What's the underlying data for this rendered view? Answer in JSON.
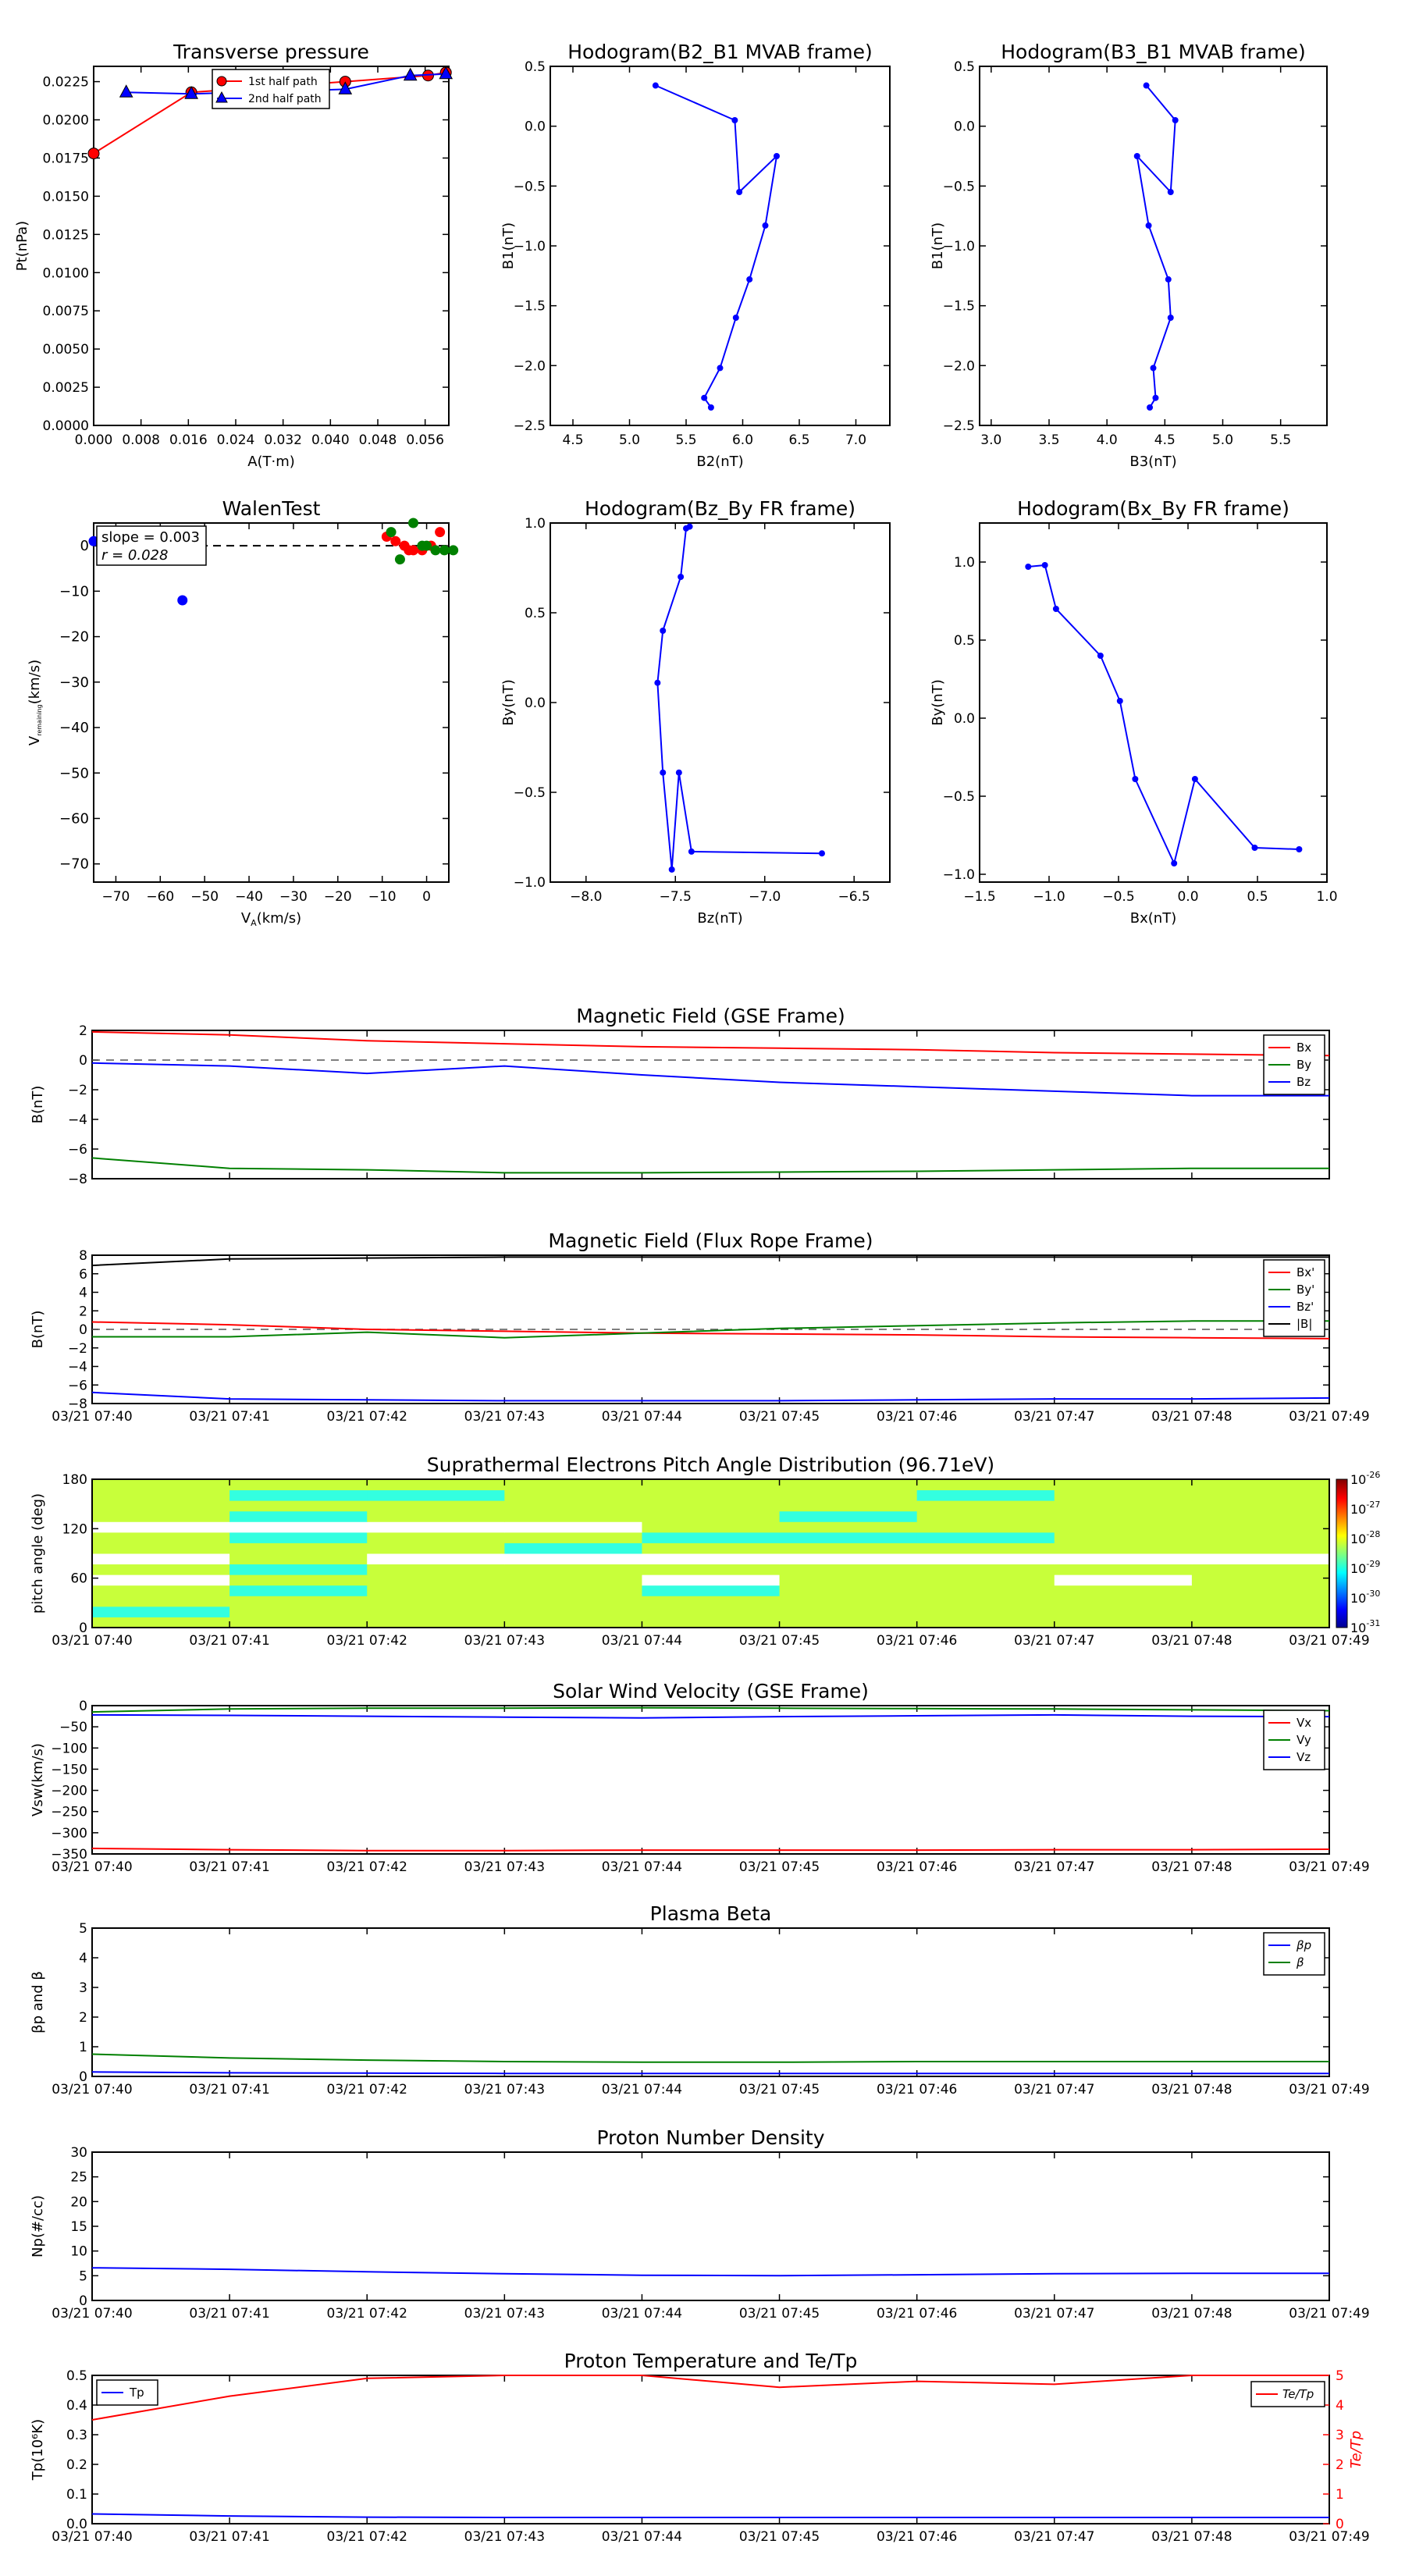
{
  "colors": {
    "red": "#ff0000",
    "green": "#008000",
    "blue": "#0000ff",
    "black": "#000000",
    "dash": "#555555"
  },
  "time_ticks": [
    "03/21 07:40",
    "03/21 07:41",
    "03/21 07:42",
    "03/21 07:43",
    "03/21 07:44",
    "03/21 07:45",
    "03/21 07:46",
    "03/21 07:47",
    "03/21 07:48",
    "03/21 07:49"
  ],
  "chart_data": [
    {
      "id": "tp",
      "type": "line",
      "title": "Transverse pressure",
      "xlabel": "A(T·m)",
      "ylabel": "Pt(nPa)",
      "xlim": [
        0,
        0.06
      ],
      "ylim": [
        0,
        0.0235
      ],
      "xticks": [
        0,
        0.008,
        0.016,
        0.024,
        0.032,
        0.04,
        0.048,
        0.056
      ],
      "xtick_labels": [
        "0.000",
        "0.008",
        "0.016",
        "0.024",
        "0.032",
        "0.040",
        "0.048",
        "0.056"
      ],
      "yticks": [
        0,
        0.0025,
        0.005,
        0.0075,
        0.01,
        0.0125,
        0.015,
        0.0175,
        0.02,
        0.0225
      ],
      "ytick_labels": [
        "0.0000",
        "0.0025",
        "0.0050",
        "0.0075",
        "0.0100",
        "0.0125",
        "0.0150",
        "0.0175",
        "0.0200",
        "0.0225"
      ],
      "legend": "top-right",
      "series": [
        {
          "name": "1st half path",
          "color": "#ff0000",
          "marker": "circle",
          "x": [
            0.0,
            0.0165,
            0.0425,
            0.0565,
            0.0595
          ],
          "y": [
            0.0178,
            0.0218,
            0.0225,
            0.0229,
            0.0231
          ]
        },
        {
          "name": "2nd half path",
          "color": "#0000ff",
          "marker": "triangle",
          "x": [
            0.0055,
            0.0165,
            0.0425,
            0.0535,
            0.0595
          ],
          "y": [
            0.0218,
            0.0217,
            0.022,
            0.0229,
            0.023
          ]
        }
      ]
    },
    {
      "id": "h1",
      "type": "line",
      "title": "Hodogram(B2_B1 MVAB frame)",
      "xlabel": "B2(nT)",
      "ylabel": "B1(nT)",
      "xlim": [
        4.3,
        7.3
      ],
      "ylim": [
        -2.5,
        0.5
      ],
      "xticks": [
        4.5,
        5,
        5.5,
        6,
        6.5,
        7
      ],
      "xtick_labels": [
        "4.5",
        "5.0",
        "5.5",
        "6.0",
        "6.5",
        "7.0"
      ],
      "yticks": [
        -2.5,
        -2,
        -1.5,
        -1,
        -0.5,
        0,
        0.5
      ],
      "ytick_labels": [
        "−2.5",
        "−2.0",
        "−1.5",
        "−1.0",
        "−0.5",
        "0.0",
        "0.5"
      ],
      "series": [
        {
          "color": "#0000ff",
          "x": [
            5.23,
            5.93,
            5.97,
            6.3,
            6.2,
            6.06,
            5.94,
            5.8,
            5.66,
            5.72
          ],
          "y": [
            0.34,
            0.05,
            -0.55,
            -0.25,
            -0.83,
            -1.28,
            -1.6,
            -2.02,
            -2.27,
            -2.35
          ]
        }
      ]
    },
    {
      "id": "h2",
      "type": "line",
      "title": "Hodogram(B3_B1 MVAB frame)",
      "xlabel": "B3(nT)",
      "ylabel": "B1(nT)",
      "xlim": [
        2.9,
        5.9
      ],
      "ylim": [
        -2.5,
        0.5
      ],
      "xticks": [
        3,
        3.5,
        4,
        4.5,
        5,
        5.5
      ],
      "xtick_labels": [
        "3.0",
        "3.5",
        "4.0",
        "4.5",
        "5.0",
        "5.5"
      ],
      "yticks": [
        -2.5,
        -2,
        -1.5,
        -1,
        -0.5,
        0,
        0.5
      ],
      "ytick_labels": [
        "−2.5",
        "−2.0",
        "−1.5",
        "−1.0",
        "−0.5",
        "0.0",
        "0.5"
      ],
      "series": [
        {
          "color": "#0000ff",
          "x": [
            4.34,
            4.59,
            4.55,
            4.26,
            4.36,
            4.53,
            4.55,
            4.4,
            4.42,
            4.37
          ],
          "y": [
            0.34,
            0.05,
            -0.55,
            -0.25,
            -0.83,
            -1.28,
            -1.6,
            -2.02,
            -2.27,
            -2.35
          ]
        }
      ]
    },
    {
      "id": "walen",
      "type": "scatter",
      "title": "WalenTest",
      "xlabel": "V",
      "xlabel_sub": "A",
      "xlabel_tail": "(km/s)",
      "ylabel": "V",
      "ylabel_sub": "remaining",
      "ylabel_tail": "(km/s)",
      "xlim": [
        -75,
        5
      ],
      "ylim": [
        -74,
        5
      ],
      "xticks": [
        -70,
        -60,
        -50,
        -40,
        -30,
        -20,
        -10,
        0
      ],
      "xtick_labels": [
        "−70",
        "−60",
        "−50",
        "−40",
        "−30",
        "−20",
        "−10",
        "0"
      ],
      "yticks": [
        -70,
        -60,
        -50,
        -40,
        -30,
        -20,
        -10,
        0
      ],
      "ytick_labels": [
        "−70",
        "−60",
        "−50",
        "−40",
        "−30",
        "−20",
        "−10",
        "0"
      ],
      "annotation_slope": "slope = 0.003",
      "annotation_r": "r = 0.028",
      "series": [
        {
          "color": "#0000ff",
          "x": [
            -75,
            -67,
            -64,
            -55
          ],
          "y": [
            1,
            -1,
            -3,
            -12
          ]
        },
        {
          "color": "#ff0000",
          "x": [
            -9,
            -7,
            -5,
            -4,
            -3,
            -1,
            1,
            3
          ],
          "y": [
            2,
            1,
            0,
            -1,
            -1,
            -1,
            0,
            3
          ]
        },
        {
          "color": "#008000",
          "x": [
            -8,
            -6,
            -3,
            -1,
            0,
            2,
            4,
            6
          ],
          "y": [
            3,
            -3,
            5,
            0,
            0,
            -1,
            -1,
            -1
          ]
        }
      ]
    },
    {
      "id": "fr1",
      "type": "line",
      "title": "Hodogram(Bz_By FR frame)",
      "xlabel": "Bz(nT)",
      "ylabel": "By(nT)",
      "xlim": [
        -8.2,
        -6.3
      ],
      "ylim": [
        -1.0,
        1.0
      ],
      "xticks": [
        -8,
        -7.5,
        -7,
        -6.5
      ],
      "xtick_labels": [
        "−8.0",
        "−7.5",
        "−7.0",
        "−6.5"
      ],
      "yticks": [
        -1,
        -0.5,
        0,
        0.5,
        1
      ],
      "ytick_labels": [
        "−1.0",
        "−0.5",
        "0.0",
        "0.5",
        "1.0"
      ],
      "series": [
        {
          "color": "#0000ff",
          "x": [
            -7.42,
            -7.44,
            -7.47,
            -7.57,
            -7.6,
            -7.57,
            -7.52,
            -7.48,
            -7.41,
            -6.68
          ],
          "y": [
            0.98,
            0.97,
            0.7,
            0.4,
            0.11,
            -0.39,
            -0.93,
            -0.39,
            -0.83,
            -0.84
          ]
        }
      ]
    },
    {
      "id": "fr2",
      "type": "line",
      "title": "Hodogram(Bx_By FR frame)",
      "xlabel": "Bx(nT)",
      "ylabel": "By(nT)",
      "xlim": [
        -1.5,
        1.0
      ],
      "ylim": [
        -1.05,
        1.25
      ],
      "xticks": [
        -1.5,
        -1,
        -0.5,
        0,
        0.5,
        1
      ],
      "xtick_labels": [
        "−1.5",
        "−1.0",
        "−0.5",
        "0.0",
        "0.5",
        "1.0"
      ],
      "yticks": [
        -1,
        -0.5,
        0,
        0.5,
        1
      ],
      "ytick_labels": [
        "−1.0",
        "−0.5",
        "0.0",
        "0.5",
        "1.0"
      ],
      "series": [
        {
          "color": "#0000ff",
          "x": [
            -1.15,
            -1.03,
            -0.95,
            -0.63,
            -0.49,
            -0.38,
            -0.1,
            0.05,
            0.48,
            0.8
          ],
          "y": [
            0.97,
            0.98,
            0.7,
            0.4,
            0.11,
            -0.39,
            -0.93,
            -0.39,
            -0.83,
            -0.84
          ]
        }
      ]
    },
    {
      "id": "bgse",
      "type": "line",
      "title": "Magnetic Field (GSE Frame)",
      "ylabel": "B(nT)",
      "ylim": [
        -8,
        2
      ],
      "yticks": [
        -8,
        -6,
        -4,
        -2,
        0,
        2
      ],
      "ytick_labels": [
        "−8",
        "−6",
        "−4",
        "−2",
        "0",
        "2"
      ],
      "time_labels": false,
      "zero_line": true,
      "series": [
        {
          "name": "Bx",
          "color": "#ff0000",
          "y": [
            1.9,
            1.7,
            1.3,
            1.1,
            0.9,
            0.8,
            0.7,
            0.5,
            0.4,
            0.3
          ]
        },
        {
          "name": "By",
          "color": "#008000",
          "y": [
            -6.6,
            -7.3,
            -7.4,
            -7.6,
            -7.6,
            -7.55,
            -7.5,
            -7.4,
            -7.3,
            -7.3
          ]
        },
        {
          "name": "Bz",
          "color": "#0000ff",
          "y": [
            -0.2,
            -0.4,
            -0.9,
            -0.4,
            -1.0,
            -1.5,
            -1.8,
            -2.1,
            -2.4,
            -2.4
          ]
        }
      ]
    },
    {
      "id": "bfr",
      "type": "line",
      "title": "Magnetic Field (Flux Rope Frame)",
      "ylabel": "B(nT)",
      "ylim": [
        -8,
        8
      ],
      "yticks": [
        -8,
        -6,
        -4,
        -2,
        0,
        2,
        4,
        6,
        8
      ],
      "ytick_labels": [
        "−8",
        "−6",
        "−4",
        "−2",
        "0",
        "2",
        "4",
        "6",
        "8"
      ],
      "time_labels": true,
      "zero_line": true,
      "series": [
        {
          "name": "Bx'",
          "color": "#ff0000",
          "y": [
            0.8,
            0.5,
            0.0,
            -0.2,
            -0.4,
            -0.5,
            -0.6,
            -0.8,
            -0.9,
            -1.0
          ]
        },
        {
          "name": "By'",
          "color": "#008000",
          "y": [
            -0.8,
            -0.8,
            -0.3,
            -0.9,
            -0.4,
            0.1,
            0.4,
            0.7,
            0.9,
            0.9
          ]
        },
        {
          "name": "Bz'",
          "color": "#0000ff",
          "y": [
            -6.8,
            -7.5,
            -7.6,
            -7.7,
            -7.7,
            -7.7,
            -7.6,
            -7.5,
            -7.5,
            -7.4
          ]
        },
        {
          "name": "|B|",
          "color": "#000000",
          "y": [
            6.9,
            7.6,
            7.7,
            7.8,
            7.8,
            7.8,
            7.8,
            7.8,
            7.8,
            7.8
          ]
        }
      ]
    },
    {
      "id": "pad",
      "type": "heatmap",
      "title": "Suprathermal Electrons Pitch Angle Distribution (96.71eV)",
      "ylabel": "pitch angle (deg)",
      "ylim": [
        0,
        180
      ],
      "yticks": [
        0,
        60,
        120,
        180
      ],
      "ytick_labels": [
        "0",
        "60",
        "120",
        "180"
      ],
      "time_labels": true,
      "colorbar_ticks": [
        "-26",
        "-27",
        "-28",
        "-29",
        "-30",
        "-31"
      ],
      "colorbar_base": "10",
      "rows": [
        [
          2,
          2,
          2,
          2,
          2,
          2,
          2,
          2,
          2
        ],
        [
          3,
          2,
          2,
          2,
          2,
          2,
          2,
          2,
          2
        ],
        [
          2,
          2,
          2,
          2,
          2,
          2,
          2,
          2,
          2
        ],
        [
          2,
          3,
          2,
          2,
          3,
          2,
          2,
          2,
          2
        ],
        [
          0,
          2,
          2,
          2,
          0,
          2,
          2,
          0,
          2
        ],
        [
          2,
          3,
          2,
          2,
          2,
          2,
          2,
          2,
          2
        ],
        [
          0,
          2,
          0,
          0,
          0,
          0,
          0,
          0,
          0
        ],
        [
          2,
          2,
          2,
          3,
          2,
          2,
          2,
          2,
          2
        ],
        [
          2,
          3,
          2,
          2,
          3,
          3,
          3,
          2,
          2
        ],
        [
          0,
          0,
          0,
          0,
          2,
          2,
          2,
          2,
          2
        ],
        [
          2,
          3,
          2,
          2,
          2,
          3,
          2,
          2,
          2
        ],
        [
          2,
          2,
          2,
          2,
          2,
          2,
          2,
          2,
          2
        ],
        [
          2,
          3,
          3,
          2,
          2,
          2,
          3,
          2,
          2
        ],
        [
          2,
          2,
          2,
          2,
          2,
          2,
          2,
          2,
          2
        ]
      ]
    },
    {
      "id": "vsw",
      "type": "line",
      "title": "Solar Wind Velocity (GSE Frame)",
      "ylabel": "Vsw(km/s)",
      "ylim": [
        -350,
        0
      ],
      "yticks": [
        -350,
        -300,
        -250,
        -200,
        -150,
        -100,
        -50,
        0
      ],
      "ytick_labels": [
        "−350",
        "−300",
        "−250",
        "−200",
        "−150",
        "−100",
        "−50",
        "0"
      ],
      "time_labels": true,
      "series": [
        {
          "name": "Vx",
          "color": "#ff0000",
          "y": [
            -337,
            -340,
            -342,
            -342,
            -341,
            -341,
            -341,
            -340,
            -340,
            -339
          ]
        },
        {
          "name": "Vy",
          "color": "#008000",
          "y": [
            -15,
            -8,
            -6,
            -6,
            -5,
            -6,
            -7,
            -8,
            -10,
            -12
          ]
        },
        {
          "name": "Vz",
          "color": "#0000ff",
          "y": [
            -22,
            -23,
            -25,
            -27,
            -29,
            -26,
            -24,
            -22,
            -25,
            -26
          ]
        }
      ]
    },
    {
      "id": "beta",
      "type": "line",
      "title": "Plasma Beta",
      "ylabel": "βp and β",
      "ylim": [
        0,
        5
      ],
      "yticks": [
        0,
        1,
        2,
        3,
        4,
        5
      ],
      "ytick_labels": [
        "0",
        "1",
        "2",
        "3",
        "4",
        "5"
      ],
      "time_labels": true,
      "series": [
        {
          "name": "βp",
          "color": "#0000ff",
          "y": [
            0.15,
            0.12,
            0.11,
            0.1,
            0.1,
            0.1,
            0.1,
            0.1,
            0.1,
            0.1
          ]
        },
        {
          "name": "β",
          "color": "#008000",
          "y": [
            0.75,
            0.62,
            0.55,
            0.5,
            0.48,
            0.48,
            0.5,
            0.5,
            0.5,
            0.5
          ]
        }
      ]
    },
    {
      "id": "np",
      "type": "line",
      "title": "Proton Number Density",
      "ylabel": "Np(#/cc)",
      "ylim": [
        0,
        30
      ],
      "yticks": [
        0,
        5,
        10,
        15,
        20,
        25,
        30
      ],
      "ytick_labels": [
        "0",
        "5",
        "10",
        "15",
        "20",
        "25",
        "30"
      ],
      "time_labels": true,
      "series": [
        {
          "color": "#0000ff",
          "y": [
            6.6,
            6.3,
            5.8,
            5.4,
            5.1,
            5.0,
            5.2,
            5.4,
            5.5,
            5.5
          ]
        }
      ]
    },
    {
      "id": "temp",
      "type": "line",
      "title": "Proton Temperature and Te/Tp",
      "ylabel": "Tp(10⁶K)",
      "ylabel_right": "Te/Tp",
      "ylim": [
        0,
        0.5
      ],
      "ylim_right": [
        0,
        5
      ],
      "yticks": [
        0,
        0.1,
        0.2,
        0.3,
        0.4,
        0.5
      ],
      "ytick_labels": [
        "0.0",
        "0.1",
        "0.2",
        "0.3",
        "0.4",
        "0.5"
      ],
      "yticks_right": [
        0,
        1,
        2,
        3,
        4,
        5
      ],
      "ytick_labels_right": [
        "0",
        "1",
        "2",
        "3",
        "4",
        "5"
      ],
      "time_labels": true,
      "series": [
        {
          "name": "Tp",
          "color": "#0000ff",
          "axis": "left",
          "y": [
            0.033,
            0.026,
            0.022,
            0.021,
            0.021,
            0.021,
            0.021,
            0.021,
            0.021,
            0.021
          ]
        },
        {
          "name": "Te/Tp",
          "color": "#ff0000",
          "axis": "right",
          "y": [
            3.5,
            4.3,
            4.9,
            5.0,
            5.0,
            4.6,
            4.8,
            4.7,
            5.0,
            5.0
          ]
        }
      ]
    }
  ]
}
